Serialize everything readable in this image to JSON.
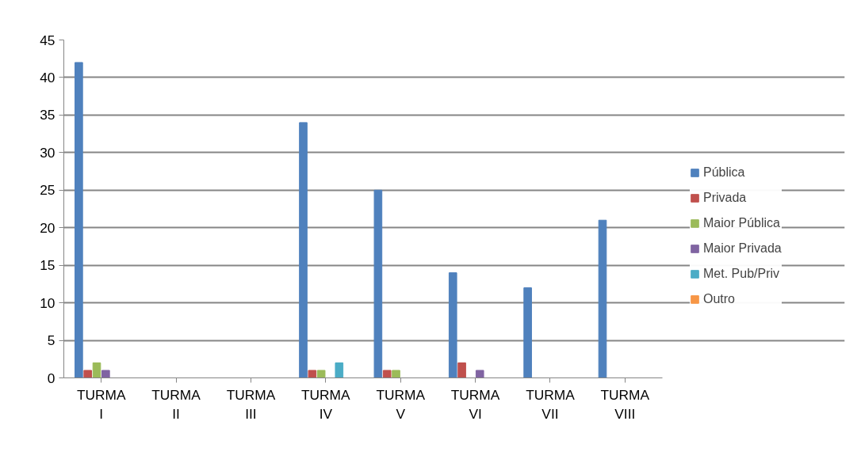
{
  "chart_data": {
    "type": "bar",
    "categories": [
      "TURMA I",
      "TURMA II",
      "TURMA III",
      "TURMA IV",
      "TURMA V",
      "TURMA VI",
      "TURMA VII",
      "TURMA VIII"
    ],
    "series": [
      {
        "name": "Pública",
        "color": "#4f81bd",
        "values": [
          42,
          0,
          0,
          34,
          25,
          14,
          12,
          21
        ]
      },
      {
        "name": "Privada",
        "color": "#c0504d",
        "values": [
          1,
          0,
          0,
          1,
          1,
          2,
          0,
          0
        ]
      },
      {
        "name": "Maior Pública",
        "color": "#9bbb59",
        "values": [
          2,
          0,
          0,
          1,
          1,
          0,
          0,
          0
        ]
      },
      {
        "name": "Maior Privada",
        "color": "#8064a2",
        "values": [
          1,
          0,
          0,
          0,
          0,
          1,
          0,
          0
        ]
      },
      {
        "name": "Met. Pub/Priv",
        "color": "#4bacc6",
        "values": [
          0,
          0,
          0,
          2,
          0,
          0,
          0,
          0
        ]
      },
      {
        "name": "Outro",
        "color": "#f79646",
        "values": [
          0,
          0,
          0,
          0,
          0,
          0,
          0,
          0
        ]
      }
    ],
    "ylim": [
      0,
      45
    ],
    "yticks": [
      0,
      5,
      10,
      15,
      20,
      25,
      30,
      35,
      40,
      45
    ],
    "grid": "y",
    "legend": "right"
  }
}
